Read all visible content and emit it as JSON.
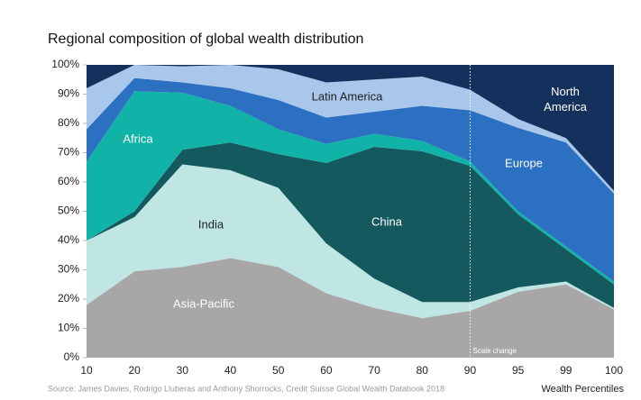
{
  "chart_data": {
    "type": "stacked_area",
    "title": "Regional composition of global wealth distribution",
    "source": "Source: James Davies, Rodrigo Lluberas and Anthony Shorrocks, Credit Suisse Global Wealth Databook 2018",
    "x_label": "Wealth Percentiles",
    "annotation": {
      "text": "Scale change",
      "category": "90"
    },
    "categories": [
      "10",
      "20",
      "30",
      "40",
      "50",
      "60",
      "70",
      "80",
      "90",
      "95",
      "99",
      "100"
    ],
    "series": [
      {
        "name": "Asia-Pacific",
        "color": "#a8a6a6",
        "values": [
          18,
          29.5,
          31,
          34,
          31,
          22,
          17,
          13.5,
          16,
          22.5,
          25,
          16.5
        ]
      },
      {
        "name": "India",
        "color": "#bfe6e3",
        "values": [
          22,
          18.5,
          35,
          30,
          27,
          17,
          10,
          5.5,
          3,
          1.5,
          1,
          0.5
        ]
      },
      {
        "name": "China",
        "color": "#14595d",
        "values": [
          0,
          2,
          5,
          9.5,
          11.5,
          27.5,
          45,
          51.5,
          46.5,
          25,
          11,
          8
        ]
      },
      {
        "name": "Africa",
        "color": "#11b3a8",
        "values": [
          27,
          41,
          19.5,
          12.5,
          8.5,
          6.5,
          4.5,
          3.5,
          1.5,
          1,
          1,
          1
        ]
      },
      {
        "name": "Europe",
        "color": "#2b70c1",
        "values": [
          11,
          4.5,
          3.5,
          6,
          10,
          9,
          7.5,
          12,
          17.5,
          28.5,
          35.5,
          30
        ]
      },
      {
        "name": "Latin America",
        "color": "#a9c7ea",
        "values": [
          14,
          4.5,
          5.5,
          8,
          10.5,
          12,
          11,
          10,
          7,
          3,
          1.5,
          1
        ]
      },
      {
        "name": "North America",
        "color": "#14305c",
        "values": [
          8,
          0,
          0.5,
          0,
          1.5,
          6,
          5,
          4,
          8.5,
          18.5,
          25,
          43
        ]
      }
    ],
    "ylim": [
      0,
      100
    ],
    "yticks": [
      {
        "value": 0,
        "label": "0%"
      },
      {
        "value": 10,
        "label": "10%"
      },
      {
        "value": 20,
        "label": "20%"
      },
      {
        "value": 30,
        "label": "30%"
      },
      {
        "value": 40,
        "label": "40%"
      },
      {
        "value": 50,
        "label": "50%"
      },
      {
        "value": 60,
        "label": "60%"
      },
      {
        "value": 70,
        "label": "70%"
      },
      {
        "value": 80,
        "label": "80%"
      },
      {
        "value": 90,
        "label": "90%"
      },
      {
        "value": 100,
        "label": "100%"
      }
    ]
  }
}
